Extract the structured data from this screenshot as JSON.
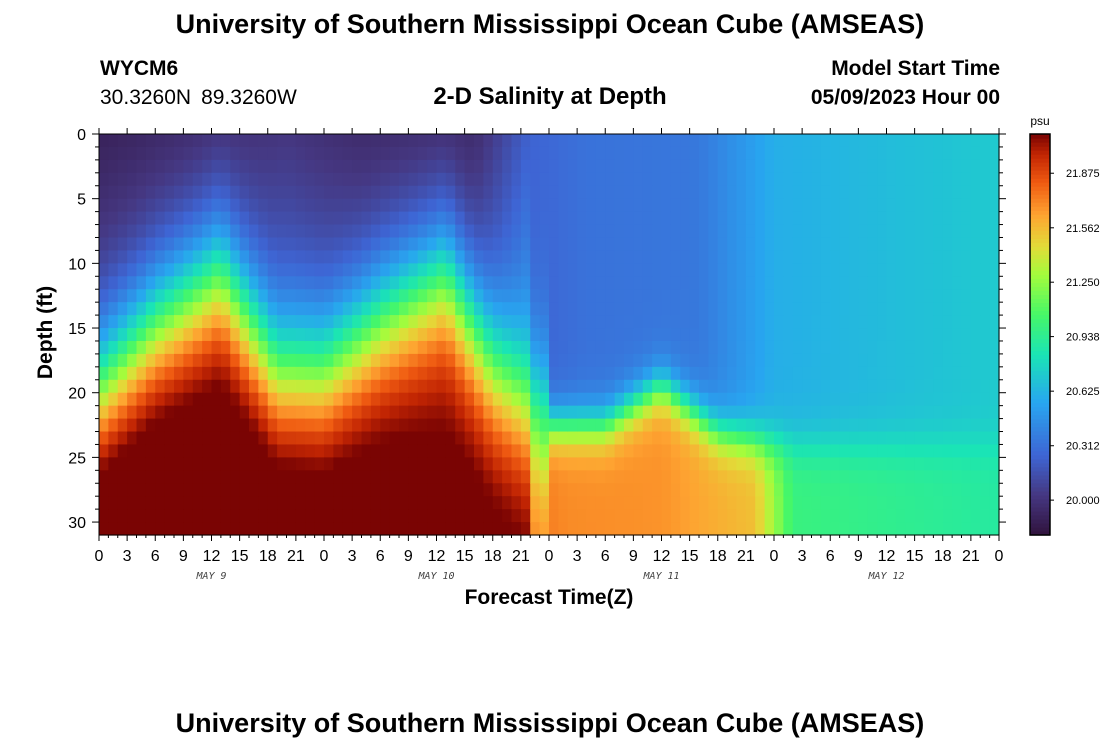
{
  "header": {
    "title": "University of Southern Mississippi Ocean Cube (AMSEAS)",
    "station": "WYCM6",
    "lat": "30.3260N",
    "lon": "89.3260W",
    "subtitle": "2-D Salinity at Depth",
    "model_label": "Model Start Time",
    "model_start": "05/09/2023 Hour 00"
  },
  "footer": {
    "title": "University of Southern Mississippi Ocean Cube (AMSEAS)"
  },
  "chart_data": {
    "type": "heatmap",
    "title": "2-D Salinity at Depth",
    "xlabel": "Forecast Time(Z)",
    "ylabel": "Depth (ft)",
    "xlim": [
      0,
      96
    ],
    "ylim": [
      31,
      0
    ],
    "x_ticks": [
      0,
      3,
      6,
      9,
      12,
      15,
      18,
      21,
      24,
      27,
      30,
      33,
      36,
      39,
      42,
      45,
      48,
      51,
      54,
      57,
      60,
      63,
      66,
      69,
      72,
      75,
      78,
      81,
      84,
      87,
      90,
      93,
      96
    ],
    "x_tick_labels": [
      "0",
      "3",
      "6",
      "9",
      "12",
      "15",
      "18",
      "21",
      "0",
      "3",
      "6",
      "9",
      "12",
      "15",
      "18",
      "21",
      "0",
      "3",
      "6",
      "9",
      "12",
      "15",
      "18",
      "21",
      "0",
      "3",
      "6",
      "9",
      "12",
      "15",
      "18",
      "21",
      "0"
    ],
    "date_labels": [
      {
        "label": "MAY 9",
        "hour": 12
      },
      {
        "label": "MAY 10",
        "hour": 36
      },
      {
        "label": "MAY 11",
        "hour": 60
      },
      {
        "label": "MAY 12",
        "hour": 84
      }
    ],
    "y_ticks": [
      0,
      5,
      10,
      15,
      20,
      25,
      30
    ],
    "colorbar": {
      "unit": "psu",
      "min": 19.8,
      "max": 22.1,
      "ticks": [
        20.0,
        20.312,
        20.625,
        20.938,
        21.25,
        21.562,
        21.875
      ],
      "tick_labels": [
        "20.000",
        "20.312",
        "20.625",
        "20.938",
        "21.250",
        "21.562",
        "21.875"
      ]
    },
    "halocline_depth_ft": {
      "hours": [
        0,
        6,
        13,
        19,
        24,
        30,
        37,
        42,
        48,
        54,
        60,
        66,
        72,
        96
      ],
      "values": [
        20,
        15,
        11,
        18.5,
        18.5,
        14.5,
        11,
        18,
        22.5,
        22.5,
        19.5,
        23,
        24,
        24
      ]
    },
    "surface_salinity_psu": {
      "hours": [
        0,
        10,
        20,
        28,
        40,
        46,
        52,
        64,
        72,
        96
      ],
      "values": [
        19.9,
        19.95,
        20.02,
        19.95,
        19.95,
        20.25,
        20.32,
        20.35,
        20.6,
        20.72
      ]
    },
    "bottom_salinity_psu": {
      "hours": [
        0,
        20,
        40,
        50,
        60,
        70,
        74,
        96
      ],
      "values": [
        22.05,
        21.98,
        21.85,
        21.7,
        21.68,
        21.55,
        21.0,
        20.9
      ]
    }
  }
}
